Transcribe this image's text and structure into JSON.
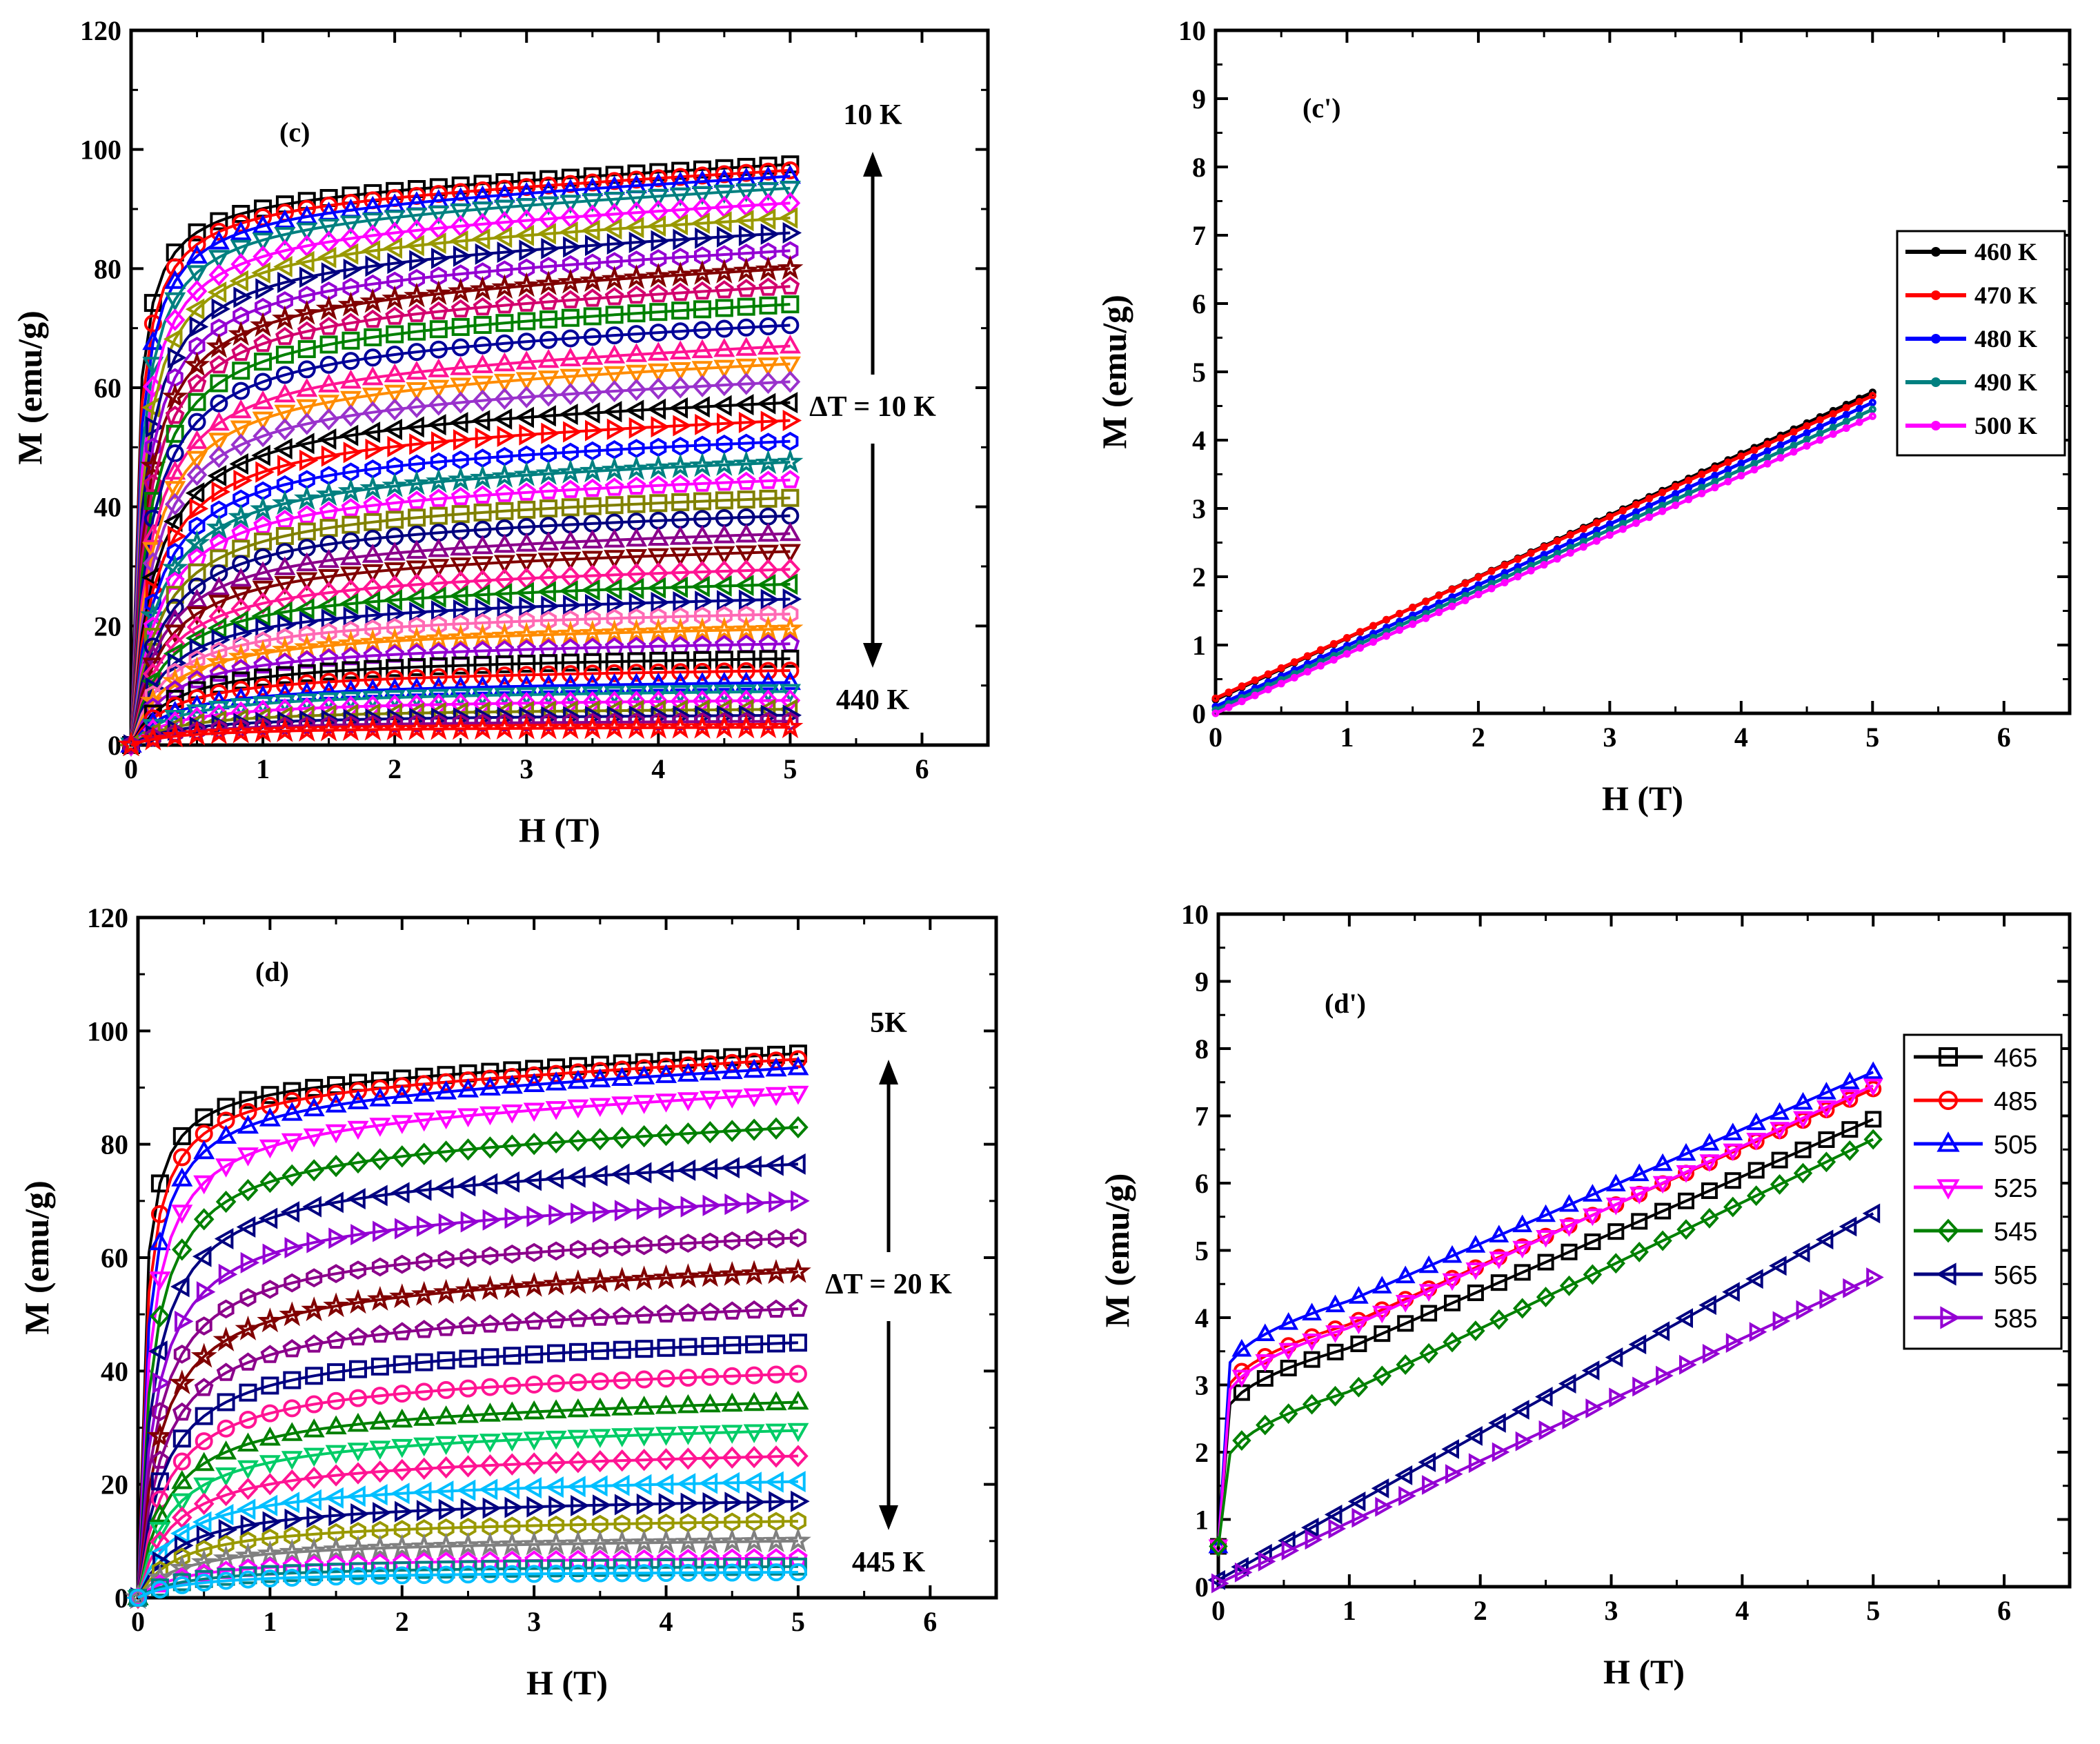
{
  "chart_data": [
    {
      "id": "c",
      "type": "line",
      "panel_label": "(c)",
      "xlabel": "H (T)",
      "ylabel": "M (emu/g)",
      "xlim": [
        0,
        6.5
      ],
      "ylim": [
        0,
        120
      ],
      "xticks": [
        0,
        1,
        2,
        3,
        4,
        5,
        6
      ],
      "yticks": [
        0,
        20,
        40,
        60,
        80,
        100,
        120
      ],
      "annotations": {
        "top": "10 K",
        "bottom": "440 K",
        "step": "ΔT = 10 K"
      },
      "h_max": 5,
      "curves_ms": [
        97.5,
        96.5,
        95.5,
        93.5,
        91,
        88.5,
        86,
        83,
        80,
        77,
        74,
        70.5,
        67,
        64,
        61,
        57.5,
        54.5,
        51,
        47.5,
        44.5,
        41.5,
        38.5,
        35.5,
        32.5,
        29.5,
        27,
        24.5,
        22,
        19.5,
        17,
        14.5,
        12.5,
        10.5,
        9,
        7.5,
        6,
        5,
        4,
        3
      ],
      "curve_colors": [
        "#000000",
        "#ff0000",
        "#0000ff",
        "#008080",
        "#ff00ff",
        "#999900",
        "#000080",
        "#9400d3",
        "#800000",
        "#d2006e",
        "#008000",
        "#000099",
        "#ff1493",
        "#ff8c00",
        "#9932cc",
        "#000000",
        "#ff0000",
        "#0000ff",
        "#008080",
        "#ff00ff",
        "#808000",
        "#000080",
        "#8b008b",
        "#800000",
        "#ff1493",
        "#008000",
        "#00008b",
        "#ff69b4",
        "#ff8c00",
        "#9400d3",
        "#000000",
        "#ff0000",
        "#0000ff",
        "#008b8b",
        "#ff00ff",
        "#808000",
        "#000080",
        "#8b008b",
        "#ff0000"
      ],
      "markers": [
        "square",
        "circle",
        "triangle-up",
        "triangle-down",
        "diamond",
        "triangle-left",
        "triangle-right",
        "hexagon",
        "star",
        "pentagon"
      ]
    },
    {
      "id": "c-prime",
      "type": "line",
      "panel_label": "(c')",
      "xlabel": "H (T)",
      "ylabel": "M (emu/g)",
      "xlim": [
        0,
        6.5
      ],
      "ylim": [
        0,
        10
      ],
      "xticks": [
        0,
        1,
        2,
        3,
        4,
        5,
        6
      ],
      "yticks": [
        0,
        1,
        2,
        3,
        4,
        5,
        6,
        7,
        8,
        9,
        10
      ],
      "legend_position": "right-middle",
      "series": [
        {
          "name": "460 K",
          "color": "#000000",
          "y0": 0.2,
          "y5": 4.7
        },
        {
          "name": "470 K",
          "color": "#ff0000",
          "y0": 0.22,
          "y5": 4.65
        },
        {
          "name": "480 K",
          "color": "#0000ff",
          "y0": 0.1,
          "y5": 4.55
        },
        {
          "name": "490 K",
          "color": "#008080",
          "y0": 0.05,
          "y5": 4.45
        },
        {
          "name": "500 K",
          "color": "#ff00ff",
          "y0": 0.0,
          "y5": 4.35
        }
      ]
    },
    {
      "id": "d",
      "type": "line",
      "panel_label": "(d)",
      "xlabel": "H (T)",
      "ylabel": "M (emu/g)",
      "xlim": [
        0,
        6.5
      ],
      "ylim": [
        0,
        120
      ],
      "xticks": [
        0,
        1,
        2,
        3,
        4,
        5,
        6
      ],
      "yticks": [
        0,
        20,
        40,
        60,
        80,
        100,
        120
      ],
      "annotations": {
        "top": "5K",
        "bottom": "445 K",
        "step": "ΔT = 20 K"
      },
      "h_max": 5,
      "curves_ms": [
        96,
        95,
        93.5,
        89,
        83,
        76.5,
        70,
        63.5,
        57.5,
        51,
        45,
        39.5,
        34.5,
        29.5,
        25,
        20.5,
        17,
        13.5,
        10,
        7,
        5.5,
        4.5
      ],
      "curve_colors": [
        "#000000",
        "#ff0000",
        "#0000ff",
        "#ff00ff",
        "#008000",
        "#000080",
        "#9400d3",
        "#8b008b",
        "#800000",
        "#8b008b",
        "#000080",
        "#ff1493",
        "#008000",
        "#00cc66",
        "#ff1493",
        "#00bfff",
        "#000080",
        "#999900",
        "#808080",
        "#ff00ff",
        "#008080",
        "#00bfff"
      ],
      "markers": [
        "square",
        "circle",
        "triangle-up",
        "triangle-down",
        "diamond",
        "triangle-left",
        "triangle-right",
        "hexagon",
        "star",
        "pentagon"
      ]
    },
    {
      "id": "d-prime",
      "type": "line",
      "panel_label": "(d')",
      "xlabel": "H (T)",
      "ylabel": "M (emu/g)",
      "xlim": [
        0,
        6.5
      ],
      "ylim": [
        0,
        10
      ],
      "xticks": [
        0,
        1,
        2,
        3,
        4,
        5,
        6
      ],
      "yticks": [
        0,
        1,
        2,
        3,
        4,
        5,
        6,
        7,
        8,
        9,
        10
      ],
      "legend_position": "top-right",
      "series": [
        {
          "name": "465",
          "color": "#000000",
          "marker": "square",
          "jump": 2.5,
          "knee": 3.55,
          "y5": 6.95,
          "kind": "ferro"
        },
        {
          "name": "485",
          "color": "#ff0000",
          "marker": "circle",
          "jump": 2.8,
          "knee": 3.9,
          "y5": 7.4,
          "kind": "ferro"
        },
        {
          "name": "505",
          "color": "#0000ff",
          "marker": "triangle-up",
          "jump": 3.1,
          "knee": 4.25,
          "y5": 7.65,
          "kind": "ferro"
        },
        {
          "name": "525",
          "color": "#ff00ff",
          "marker": "triangle-down",
          "jump": 2.7,
          "knee": 3.85,
          "y5": 7.45,
          "kind": "ferro"
        },
        {
          "name": "545",
          "color": "#008000",
          "marker": "diamond",
          "jump": 1.75,
          "knee": 2.9,
          "y5": 6.65,
          "kind": "ferro"
        },
        {
          "name": "565",
          "color": "#000080",
          "marker": "triangle-left",
          "jump": 0.1,
          "knee": 1.2,
          "y5": 5.55,
          "kind": "para"
        },
        {
          "name": "585",
          "color": "#9400d3",
          "marker": "triangle-right",
          "jump": 0.05,
          "knee": 0.95,
          "y5": 4.6,
          "kind": "para"
        }
      ]
    }
  ]
}
